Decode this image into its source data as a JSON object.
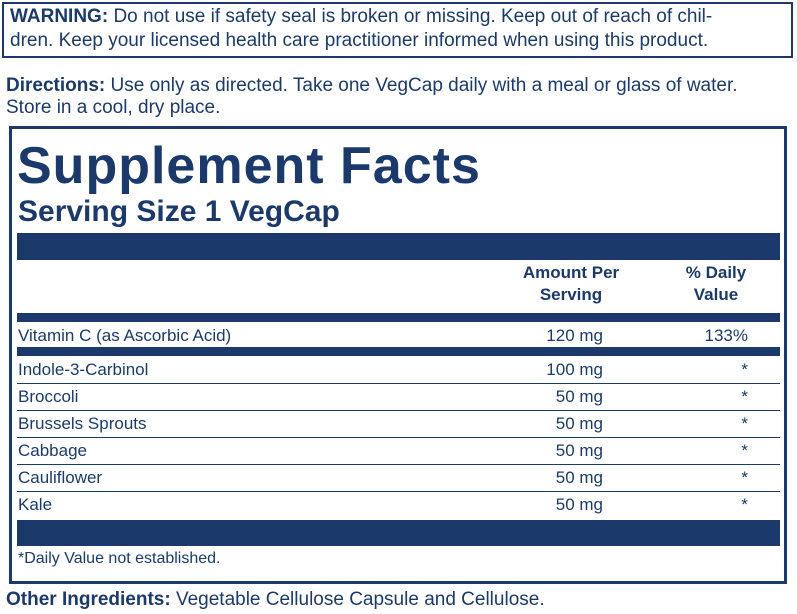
{
  "warning": {
    "label": "WARNING:",
    "lines": [
      "Do not use if safety seal is broken or missing. Keep out of reach of chil-",
      "dren. Keep your licensed health care practitioner informed when using this product."
    ]
  },
  "directions": {
    "label": "Directions:",
    "lines": [
      "Use only as directed. Take one VegCap daily with a meal or glass of water.",
      "Store in a cool, dry place."
    ]
  },
  "facts": {
    "title": "Supplement Facts",
    "serving_size": "Serving Size 1 VegCap",
    "header": {
      "amount": "Amount Per Serving",
      "daily_value": "% Daily Value"
    },
    "rows": [
      [
        "Vitamin C (as Ascorbic Acid)",
        "120 mg",
        "133%"
      ],
      [
        "Indole-3-Carbinol",
        "100 mg",
        "*"
      ],
      [
        "Broccoli",
        "50 mg",
        "*"
      ],
      [
        "Brussels Sprouts",
        "50 mg",
        "*"
      ],
      [
        "Cabbage",
        "50 mg",
        "*"
      ],
      [
        "Cauliflower",
        "50 mg",
        "*"
      ],
      [
        "Kale",
        "50 mg",
        "*"
      ]
    ],
    "footnote": "*Daily Value not established."
  },
  "other_ingredients": {
    "label": "Other Ingredients:",
    "text": "Vegetable Cellulose Capsule and Cellulose."
  }
}
